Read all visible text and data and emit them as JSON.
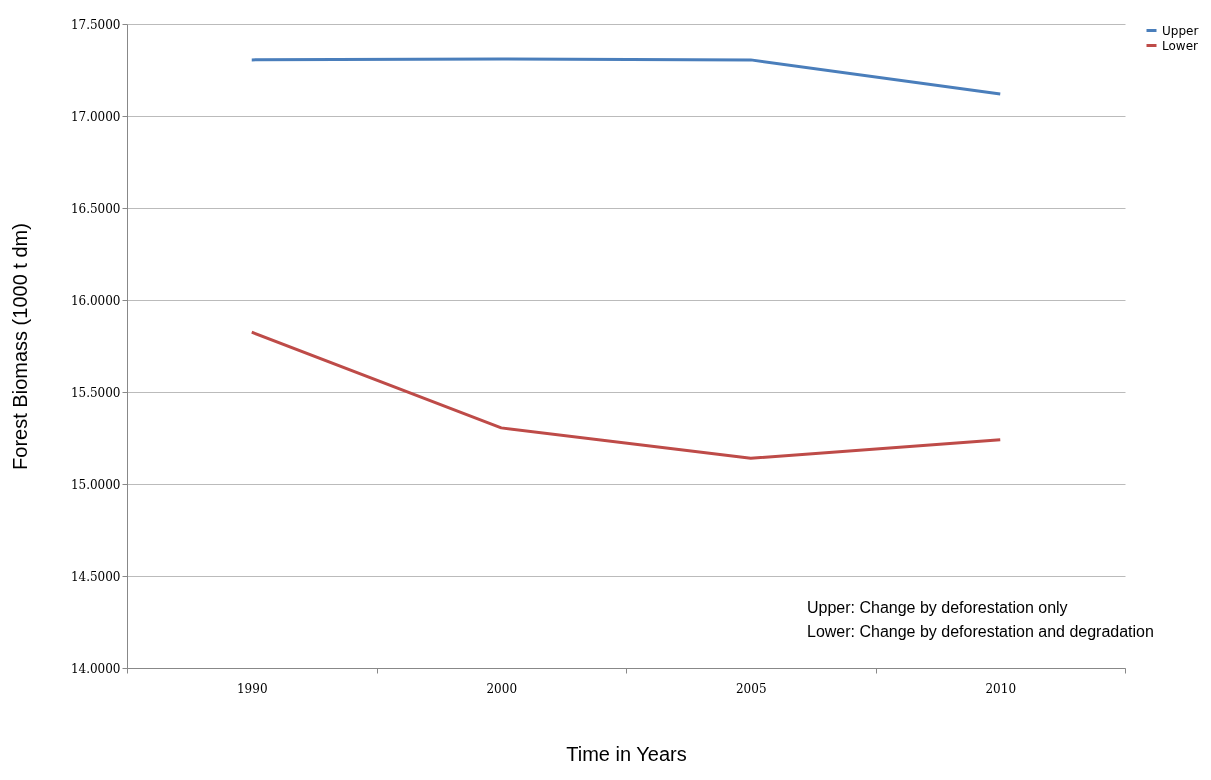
{
  "chart_data": {
    "type": "line",
    "xlabel": "Time in Years",
    "ylabel": "Forest Biomass (1000 t dm)",
    "categories": [
      "1990",
      "2000",
      "2005",
      "2010"
    ],
    "series": [
      {
        "name": "Upper",
        "color": "#4a7ebb",
        "values": [
          17.305,
          17.31,
          17.305,
          17.12
        ]
      },
      {
        "name": "Lower",
        "color": "#be4b48",
        "values": [
          15.825,
          15.305,
          15.14,
          15.24
        ]
      }
    ],
    "ylim": [
      14,
      17.5
    ],
    "yticks": [
      {
        "value": 14,
        "label": "14.0000"
      },
      {
        "value": 14.5,
        "label": "14.5000"
      },
      {
        "value": 15,
        "label": "15.0000"
      },
      {
        "value": 15.5,
        "label": "15.5000"
      },
      {
        "value": 16,
        "label": "16.0000"
      },
      {
        "value": 16.5,
        "label": "16.5000"
      },
      {
        "value": 17,
        "label": "17.0000"
      },
      {
        "value": 17.5,
        "label": "17.5000"
      }
    ],
    "grid": "y",
    "legend": "right",
    "marker": "none",
    "line_style": "solid",
    "annotations": [
      "Upper: Change by deforestation only",
      "Lower: Change by deforestation and degradation"
    ]
  }
}
